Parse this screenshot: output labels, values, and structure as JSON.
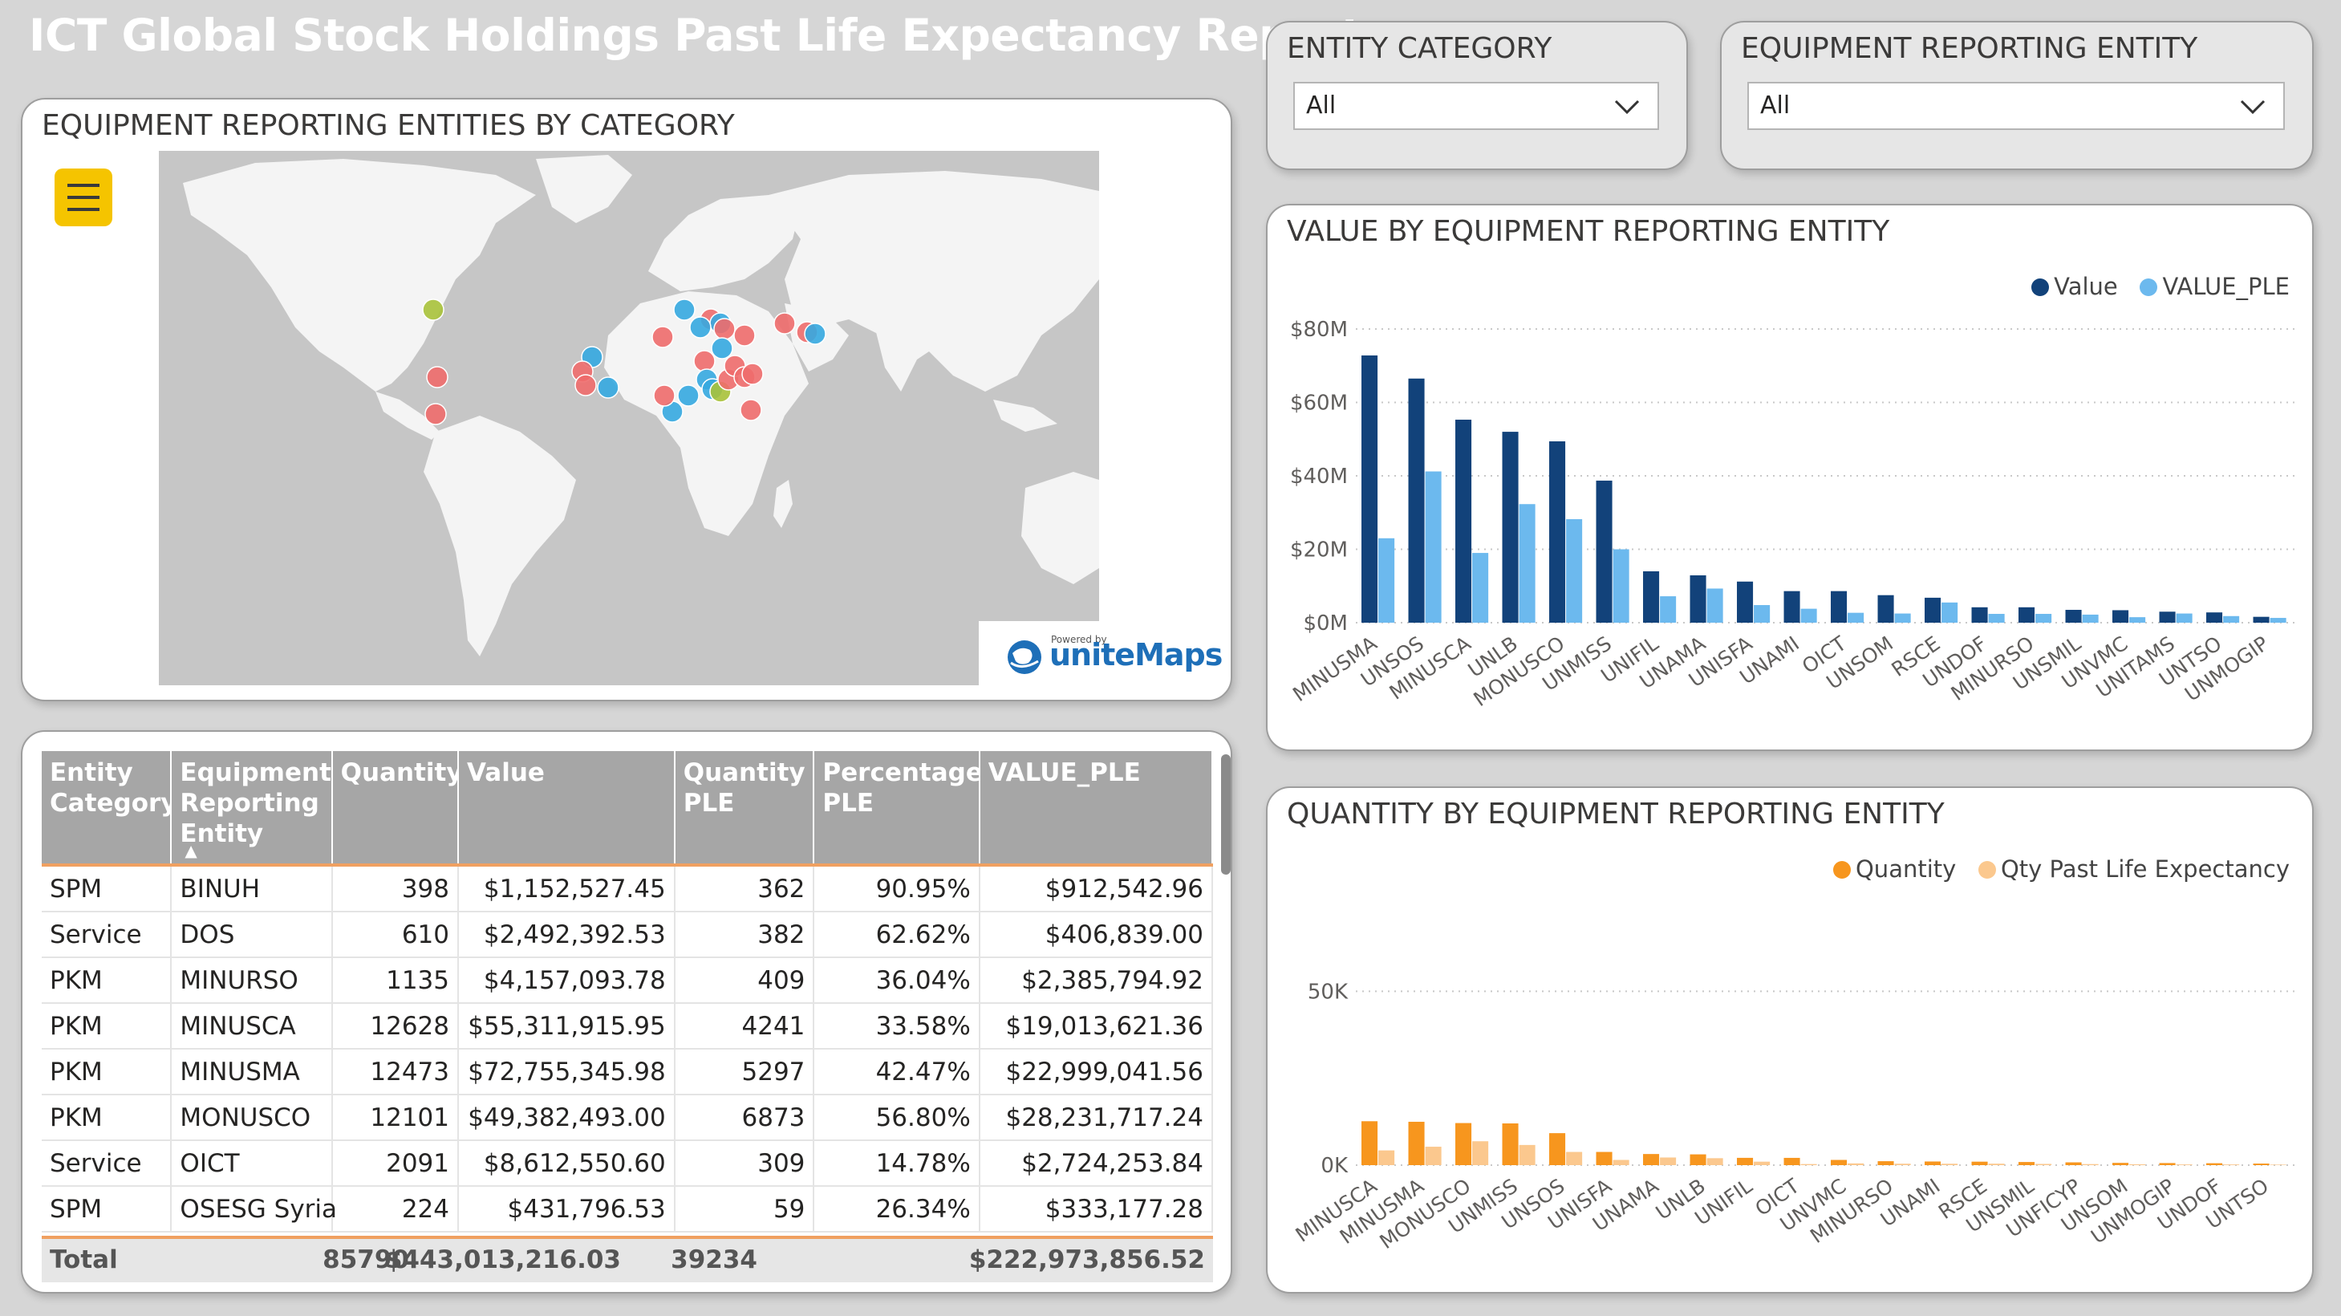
{
  "title": "ICT Global Stock Holdings Past Life Expectancy Report",
  "slicers": {
    "entity_category": {
      "label": "ENTITY CATEGORY",
      "value": "All"
    },
    "equipment_entity": {
      "label": "EQUIPMENT REPORTING ENTITY",
      "value": "All"
    }
  },
  "map": {
    "title": "EQUIPMENT REPORTING ENTITIES BY CATEGORY",
    "powered_by": "Powered by",
    "brand": "uniteMaps",
    "colors": {
      "red": "#ee6b6b",
      "blue": "#35a8e0",
      "olive": "#a8c23a",
      "land": "#f4f4f4",
      "water": "#c8c8c8"
    }
  },
  "value_chart": {
    "title": "VALUE BY EQUIPMENT REPORTING ENTITY",
    "chart_data": {
      "type": "bar",
      "categories": [
        "MINUSMA",
        "UNSOS",
        "MINUSCA",
        "UNLB",
        "MONUSCO",
        "UNMISS",
        "UNIFIL",
        "UNAMA",
        "UNISFA",
        "UNAMI",
        "OICT",
        "UNSOM",
        "RSCE",
        "UNDOF",
        "MINURSO",
        "UNSMIL",
        "UNVMC",
        "UNITAMS",
        "UNTSO",
        "UNMOGIP"
      ],
      "series": [
        {
          "name": "Value",
          "color": "#12427a",
          "values": [
            72.8,
            66.5,
            55.3,
            52.0,
            49.4,
            38.7,
            14.0,
            12.9,
            11.2,
            8.6,
            8.6,
            7.5,
            6.8,
            4.2,
            4.2,
            3.5,
            3.4,
            3.0,
            2.8,
            1.6
          ]
        },
        {
          "name": "VALUE_PLE",
          "color": "#6cb9ee",
          "values": [
            23.0,
            41.2,
            19.0,
            32.3,
            28.2,
            20.0,
            7.2,
            9.3,
            4.8,
            3.8,
            2.7,
            2.5,
            5.5,
            2.4,
            2.4,
            2.2,
            1.5,
            2.5,
            1.8,
            1.3
          ]
        }
      ],
      "yticks": [
        "$0M",
        "$20M",
        "$40M",
        "$60M",
        "$80M"
      ],
      "ylim": [
        0,
        80
      ]
    }
  },
  "qty_chart": {
    "title": "QUANTITY BY EQUIPMENT REPORTING ENTITY",
    "chart_data": {
      "type": "bar",
      "categories": [
        "MINUSCA",
        "MINUSMA",
        "MONUSCO",
        "UNMISS",
        "UNSOS",
        "UNISFA",
        "UNAMA",
        "UNLB",
        "UNIFIL",
        "OICT",
        "UNVMC",
        "MINURSO",
        "UNAMI",
        "RSCE",
        "UNSMIL",
        "UNFICYP",
        "UNSOM",
        "UNMOGIP",
        "UNDOF",
        "UNTSO"
      ],
      "series": [
        {
          "name": "Quantity",
          "color": "#f7961e",
          "values": [
            12628,
            12473,
            12101,
            12001,
            9200,
            3800,
            3200,
            3100,
            2100,
            2091,
            1500,
            1135,
            1050,
            1000,
            900,
            800,
            650,
            600,
            550,
            450
          ]
        },
        {
          "name": "Qty Past Life Expectancy",
          "color": "#fbc88e",
          "values": [
            4241,
            5297,
            6873,
            5800,
            3800,
            1500,
            2200,
            2000,
            1000,
            309,
            500,
            409,
            400,
            420,
            350,
            300,
            250,
            200,
            200,
            150
          ]
        }
      ],
      "yticks": [
        "0K",
        "50K"
      ],
      "ylim": [
        0,
        60000
      ]
    }
  },
  "table": {
    "headers": [
      "Entity Category",
      "Equipment Reporting Entity",
      "Quantity",
      "Value",
      "Quantity PLE",
      "Percentage PLE",
      "VALUE_PLE"
    ],
    "rows": [
      [
        "SPM",
        "BINUH",
        "398",
        "$1,152,527.45",
        "362",
        "90.95%",
        "$912,542.96"
      ],
      [
        "Service",
        "DOS",
        "610",
        "$2,492,392.53",
        "382",
        "62.62%",
        "$406,839.00"
      ],
      [
        "PKM",
        "MINURSO",
        "1135",
        "$4,157,093.78",
        "409",
        "36.04%",
        "$2,385,794.92"
      ],
      [
        "PKM",
        "MINUSCA",
        "12628",
        "$55,311,915.95",
        "4241",
        "33.58%",
        "$19,013,621.36"
      ],
      [
        "PKM",
        "MINUSMA",
        "12473",
        "$72,755,345.98",
        "5297",
        "42.47%",
        "$22,999,041.56"
      ],
      [
        "PKM",
        "MONUSCO",
        "12101",
        "$49,382,493.00",
        "6873",
        "56.80%",
        "$28,231,717.24"
      ],
      [
        "Service",
        "OICT",
        "2091",
        "$8,612,550.60",
        "309",
        "14.78%",
        "$2,724,253.84"
      ],
      [
        "SPM",
        "OSESG Syria",
        "224",
        "$431,796.53",
        "59",
        "26.34%",
        "$333,177.28"
      ]
    ],
    "total": {
      "label": "Total",
      "quantity": "85790",
      "value": "$443,013,216.03",
      "quantity_ple": "39234",
      "value_ple": "$222,973,856.52"
    }
  }
}
